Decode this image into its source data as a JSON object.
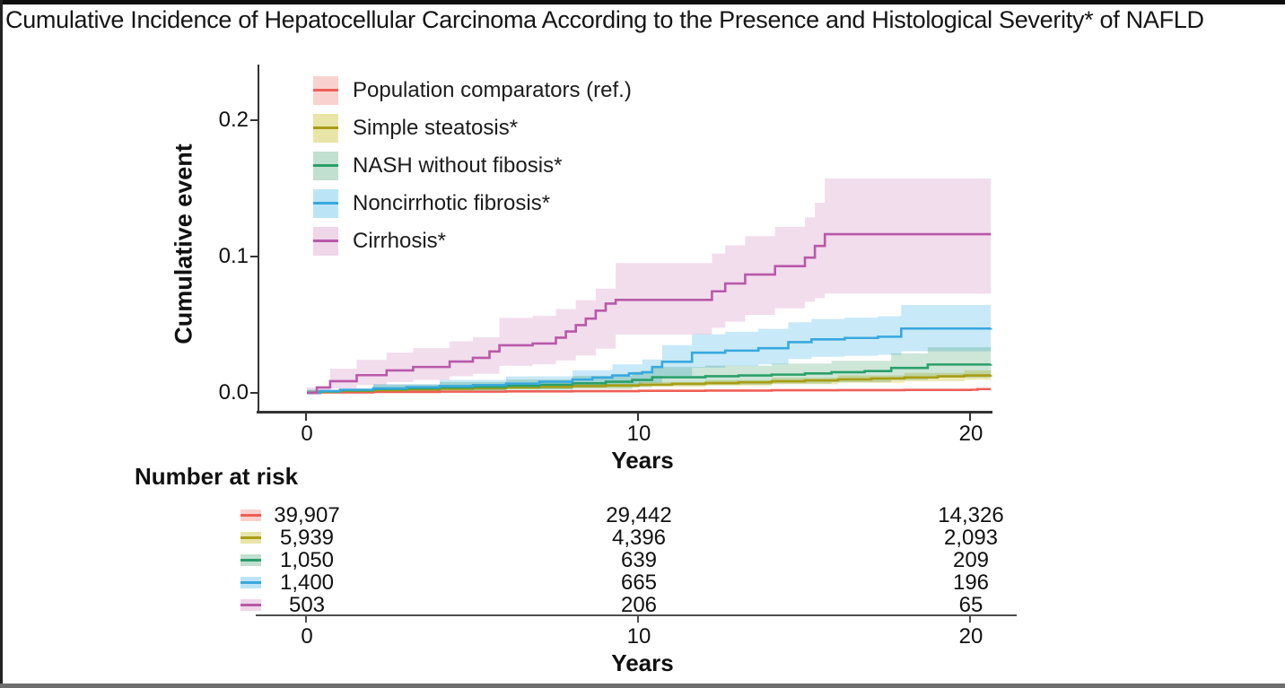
{
  "figure": {
    "title": "Cumulative Incidence of Hepatocellular Carcinoma According to the Presence and Histological Severity* of NAFLD",
    "y_axis_label": "Cumulative event",
    "x_axis_label": "Years",
    "y_ticks": [
      "0.2",
      "0.1",
      "0.0"
    ],
    "x_ticks": [
      "0",
      "10",
      "20"
    ],
    "risk_table": {
      "title": "Number at risk",
      "x_axis_label": "Years",
      "x_ticks": [
        "0",
        "10",
        "20"
      ],
      "rows": [
        {
          "name": "Population comparators (ref.)",
          "values": [
            "39,907",
            "29,442",
            "14,326"
          ]
        },
        {
          "name": "Simple steatosis*",
          "values": [
            "5,939",
            "4,396",
            "2,093"
          ]
        },
        {
          "name": "NASH without fibosis*",
          "values": [
            "1,050",
            "639",
            "209"
          ]
        },
        {
          "name": "Noncirrhotic fibrosis*",
          "values": [
            "1,400",
            "665",
            "196"
          ]
        },
        {
          "name": "Cirrhosis*",
          "values": [
            "503",
            "206",
            "65"
          ]
        }
      ]
    }
  },
  "chart_data": {
    "type": "line",
    "subtype": "kaplan-meier-cumulative-incidence-step",
    "title": "Cumulative Incidence of Hepatocellular Carcinoma According to the Presence and Histological Severity* of NAFLD",
    "xlabel": "Years",
    "ylabel": "Cumulative event",
    "xlim": [
      -1.5,
      20.9
    ],
    "ylim": [
      0,
      0.24
    ],
    "x_ticks": [
      0,
      10,
      20
    ],
    "y_ticks": [
      0.0,
      0.1,
      0.2
    ],
    "grid": false,
    "legend_position": "top-left-inside",
    "series": [
      {
        "name": "Population comparators (ref.)",
        "line_color": "#ee5f56",
        "band_color": "#f9d2d0",
        "points": [
          [
            0,
            0
          ],
          [
            0.3,
            0.0004
          ],
          [
            2,
            0.0007
          ],
          [
            4,
            0.0009
          ],
          [
            6,
            0.0011
          ],
          [
            8,
            0.0013
          ],
          [
            10,
            0.0015
          ],
          [
            12,
            0.0017
          ],
          [
            14,
            0.0019
          ],
          [
            16,
            0.002
          ],
          [
            18,
            0.0022
          ],
          [
            20,
            0.0023
          ],
          [
            20.2,
            0.0028
          ],
          [
            20.6,
            0.0028
          ]
        ],
        "band": [
          [
            0,
            0,
            0.0008
          ],
          [
            2,
            0.0002,
            0.0012
          ],
          [
            4,
            0.0004,
            0.0014
          ],
          [
            6,
            0.0006,
            0.0016
          ],
          [
            8,
            0.0008,
            0.0018
          ],
          [
            10,
            0.001,
            0.002
          ],
          [
            12,
            0.0012,
            0.0022
          ],
          [
            14,
            0.0014,
            0.0024
          ],
          [
            16,
            0.0015,
            0.0026
          ],
          [
            18,
            0.0016,
            0.0028
          ],
          [
            20,
            0.0017,
            0.003
          ],
          [
            20.2,
            0.002,
            0.0036
          ],
          [
            20.6,
            0.002,
            0.0036
          ]
        ]
      },
      {
        "name": "Simple steatosis*",
        "line_color": "#a89d15",
        "band_color": "#e9e5a8",
        "points": [
          [
            0,
            0
          ],
          [
            0.4,
            0.0008
          ],
          [
            1,
            0.0014
          ],
          [
            2,
            0.002
          ],
          [
            3,
            0.0025
          ],
          [
            4,
            0.003
          ],
          [
            5,
            0.0035
          ],
          [
            6,
            0.004
          ],
          [
            7,
            0.0045
          ],
          [
            8,
            0.005
          ],
          [
            9,
            0.0055
          ],
          [
            10,
            0.006
          ],
          [
            11,
            0.0066
          ],
          [
            12,
            0.0072
          ],
          [
            13,
            0.0078
          ],
          [
            14,
            0.0085
          ],
          [
            15,
            0.0092
          ],
          [
            16,
            0.0099
          ],
          [
            17,
            0.0106
          ],
          [
            18,
            0.0113
          ],
          [
            19,
            0.0121
          ],
          [
            19.8,
            0.0128
          ],
          [
            20.6,
            0.013
          ]
        ],
        "band": [
          [
            0,
            0,
            0.0015
          ],
          [
            2,
            0.0012,
            0.0032
          ],
          [
            4,
            0.002,
            0.0045
          ],
          [
            6,
            0.0028,
            0.0056
          ],
          [
            8,
            0.0036,
            0.0068
          ],
          [
            10,
            0.0044,
            0.008
          ],
          [
            12,
            0.0053,
            0.0094
          ],
          [
            14,
            0.0063,
            0.011
          ],
          [
            16,
            0.0074,
            0.0128
          ],
          [
            18,
            0.0085,
            0.0146
          ],
          [
            19.8,
            0.0096,
            0.0165
          ],
          [
            20.6,
            0.0098,
            0.0168
          ]
        ]
      },
      {
        "name": "NASH without fibosis*",
        "line_color": "#2aa06a",
        "band_color": "#c2e0cf",
        "points": [
          [
            0,
            0
          ],
          [
            0.4,
            0.001
          ],
          [
            1,
            0.0019
          ],
          [
            2,
            0.0028
          ],
          [
            3,
            0.0034
          ],
          [
            4,
            0.004
          ],
          [
            5,
            0.0045
          ],
          [
            6,
            0.0052
          ],
          [
            7,
            0.006
          ],
          [
            8,
            0.007
          ],
          [
            9,
            0.0082
          ],
          [
            9.8,
            0.0095
          ],
          [
            10.4,
            0.0115
          ],
          [
            12,
            0.0122
          ],
          [
            13,
            0.0128
          ],
          [
            14,
            0.0134
          ],
          [
            15,
            0.0143
          ],
          [
            15.8,
            0.0152
          ],
          [
            16.8,
            0.016
          ],
          [
            17.6,
            0.0183
          ],
          [
            18.7,
            0.0208
          ],
          [
            20.6,
            0.021
          ]
        ],
        "band": [
          [
            0,
            0,
            0.002
          ],
          [
            2,
            0.001,
            0.006
          ],
          [
            4,
            0.0016,
            0.008
          ],
          [
            6,
            0.0022,
            0.0098
          ],
          [
            8,
            0.003,
            0.0125
          ],
          [
            9.8,
            0.0042,
            0.0155
          ],
          [
            10.4,
            0.0055,
            0.019
          ],
          [
            12,
            0.006,
            0.02
          ],
          [
            14,
            0.0068,
            0.0215
          ],
          [
            15.8,
            0.0078,
            0.0235
          ],
          [
            17.6,
            0.0095,
            0.029
          ],
          [
            18.7,
            0.0112,
            0.0335
          ],
          [
            20.6,
            0.0115,
            0.034
          ]
        ]
      },
      {
        "name": "Noncirrhotic fibrosis*",
        "line_color": "#38a8de",
        "band_color": "#bce4f7",
        "points": [
          [
            0,
            0
          ],
          [
            0.4,
            0.0013
          ],
          [
            1,
            0.0023
          ],
          [
            2,
            0.0033
          ],
          [
            3,
            0.0042
          ],
          [
            4,
            0.005
          ],
          [
            5,
            0.0057
          ],
          [
            6,
            0.0068
          ],
          [
            7,
            0.0082
          ],
          [
            8,
            0.0098
          ],
          [
            8.6,
            0.0112
          ],
          [
            9.2,
            0.0128
          ],
          [
            9.7,
            0.0143
          ],
          [
            10.1,
            0.0152
          ],
          [
            10.4,
            0.019
          ],
          [
            10.7,
            0.0228
          ],
          [
            11.6,
            0.0295
          ],
          [
            12.6,
            0.031
          ],
          [
            13.6,
            0.0328
          ],
          [
            14.5,
            0.0372
          ],
          [
            15.2,
            0.0393
          ],
          [
            16.2,
            0.0403
          ],
          [
            17.2,
            0.0412
          ],
          [
            17.9,
            0.0472
          ],
          [
            20.6,
            0.0474
          ]
        ],
        "band": [
          [
            0,
            0,
            0.0025
          ],
          [
            2,
            0.0012,
            0.0065
          ],
          [
            4,
            0.002,
            0.0095
          ],
          [
            6,
            0.003,
            0.0122
          ],
          [
            8,
            0.0045,
            0.0165
          ],
          [
            9.2,
            0.006,
            0.021
          ],
          [
            10.1,
            0.0075,
            0.0245
          ],
          [
            10.7,
            0.0125,
            0.035
          ],
          [
            11.6,
            0.0185,
            0.043
          ],
          [
            12.6,
            0.0198,
            0.0448
          ],
          [
            13.6,
            0.021,
            0.047
          ],
          [
            14.5,
            0.0248,
            0.0518
          ],
          [
            15.2,
            0.0265,
            0.0542
          ],
          [
            16.2,
            0.0272,
            0.0552
          ],
          [
            17.2,
            0.028,
            0.0562
          ],
          [
            17.9,
            0.0305,
            0.0645
          ],
          [
            20.6,
            0.0307,
            0.0658
          ]
        ]
      },
      {
        "name": "Cirrhosis*",
        "line_color": "#b859a9",
        "band_color": "#efd6e9",
        "points": [
          [
            0,
            0
          ],
          [
            0.3,
            0.004
          ],
          [
            0.7,
            0.0086
          ],
          [
            1.5,
            0.013
          ],
          [
            2.4,
            0.0165
          ],
          [
            3.2,
            0.019
          ],
          [
            4.3,
            0.023
          ],
          [
            5,
            0.0257
          ],
          [
            5.5,
            0.0304
          ],
          [
            5.8,
            0.0349
          ],
          [
            6.8,
            0.0362
          ],
          [
            7.5,
            0.0405
          ],
          [
            7.8,
            0.045
          ],
          [
            8.1,
            0.0497
          ],
          [
            8.4,
            0.0545
          ],
          [
            8.7,
            0.0603
          ],
          [
            9,
            0.0655
          ],
          [
            9.3,
            0.0682
          ],
          [
            12.2,
            0.0745
          ],
          [
            12.6,
            0.0802
          ],
          [
            13.2,
            0.0868
          ],
          [
            14.1,
            0.093
          ],
          [
            15,
            0.0992
          ],
          [
            15.3,
            0.1078
          ],
          [
            15.6,
            0.1164
          ],
          [
            20.6,
            0.1164
          ]
        ],
        "band": [
          [
            0,
            0,
            0.004
          ],
          [
            0.7,
            0.0032,
            0.0178
          ],
          [
            1.5,
            0.0058,
            0.0242
          ],
          [
            2.4,
            0.008,
            0.0295
          ],
          [
            3.2,
            0.0095,
            0.0328
          ],
          [
            4.3,
            0.0122,
            0.0378
          ],
          [
            5,
            0.014,
            0.0408
          ],
          [
            5.8,
            0.0198,
            0.055
          ],
          [
            6.8,
            0.021,
            0.0565
          ],
          [
            7.5,
            0.0238,
            0.0615
          ],
          [
            8.1,
            0.0275,
            0.068
          ],
          [
            8.7,
            0.0325,
            0.0765
          ],
          [
            9.3,
            0.0428,
            0.0952
          ],
          [
            12.2,
            0.0478,
            0.1022
          ],
          [
            12.6,
            0.0522,
            0.1082
          ],
          [
            13.2,
            0.0572,
            0.115
          ],
          [
            14.1,
            0.062,
            0.1218
          ],
          [
            15,
            0.0668,
            0.1288
          ],
          [
            15.3,
            0.0695,
            0.1395
          ],
          [
            15.6,
            0.0728,
            0.1572
          ],
          [
            20.6,
            0.073,
            0.1572
          ]
        ]
      }
    ],
    "number_at_risk": {
      "times": [
        0,
        10,
        20
      ],
      "rows": [
        {
          "name": "Population comparators (ref.)",
          "counts": [
            39907,
            29442,
            14326
          ]
        },
        {
          "name": "Simple steatosis*",
          "counts": [
            5939,
            4396,
            2093
          ]
        },
        {
          "name": "NASH without fibosis*",
          "counts": [
            1050,
            639,
            209
          ]
        },
        {
          "name": "Noncirrhotic fibrosis*",
          "counts": [
            1400,
            665,
            196
          ]
        },
        {
          "name": "Cirrhosis*",
          "counts": [
            503,
            206,
            65
          ]
        }
      ]
    }
  }
}
